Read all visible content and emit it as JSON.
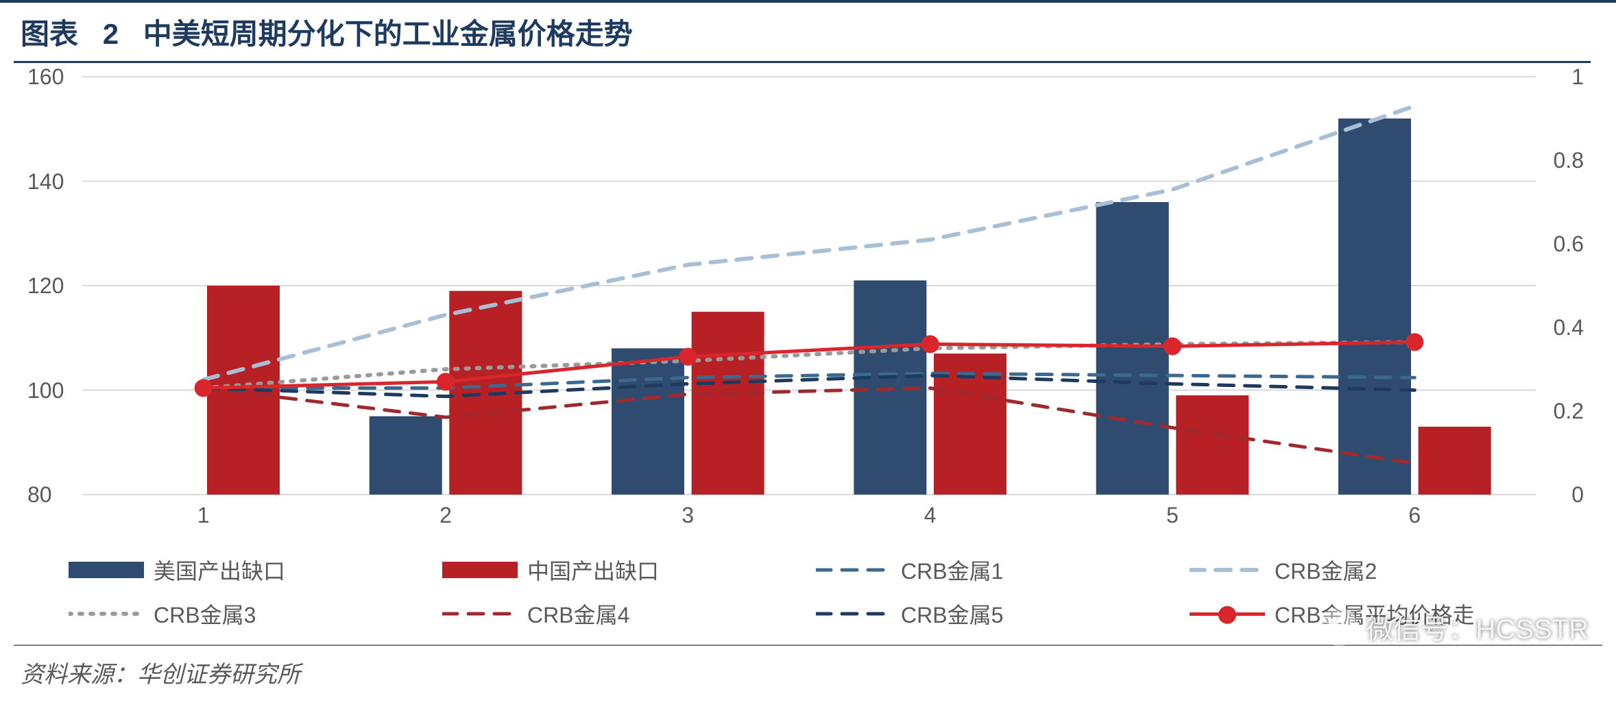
{
  "title": {
    "prefix": "图表",
    "number": "2",
    "text": "中美短周期分化下的工业金属价格走势"
  },
  "chart": {
    "type": "bar+line-dual-axis",
    "categories": [
      "1",
      "2",
      "3",
      "4",
      "5",
      "6"
    ],
    "left_axis": {
      "min": 80,
      "max": 160,
      "ticks": [
        80,
        100,
        120,
        140,
        160
      ]
    },
    "right_axis": {
      "min": 0,
      "max": 1,
      "ticks": [
        0,
        0.2,
        0.4,
        0.6,
        0.8,
        1
      ]
    },
    "grid_color": "#d9d9d9",
    "tick_color": "#595959",
    "tick_fontsize": 32,
    "bar_group_gap_ratio": 0.32,
    "bar_width_ratio": 0.3,
    "bars": [
      {
        "name": "美国产出缺口",
        "color": "#2f4b70",
        "axis": "left",
        "values": [
          80,
          95,
          108,
          121,
          136,
          152
        ]
      },
      {
        "name": "中国产出缺口",
        "color": "#b72025",
        "axis": "left",
        "values": [
          120,
          119,
          115,
          107,
          99,
          93
        ]
      }
    ],
    "lines": [
      {
        "name": "CRB金属1",
        "color": "#3c6a8e",
        "axis": "right",
        "style": "dash",
        "width": 5,
        "values": [
          0.255,
          0.255,
          0.28,
          0.29,
          0.285,
          0.28
        ]
      },
      {
        "name": "CRB金属2",
        "color": "#a8bfd6",
        "axis": "right",
        "style": "dash",
        "width": 6,
        "values": [
          0.275,
          0.43,
          0.55,
          0.61,
          0.73,
          0.93
        ]
      },
      {
        "name": "CRB金属3",
        "color": "#9a9a9a",
        "axis": "right",
        "style": "dot",
        "width": 6,
        "values": [
          0.255,
          0.3,
          0.32,
          0.35,
          0.36,
          0.365
        ]
      },
      {
        "name": "CRB金属4",
        "color": "#9e2a2f",
        "axis": "right",
        "style": "dash",
        "width": 5,
        "values": [
          0.255,
          0.185,
          0.24,
          0.255,
          0.16,
          0.075
        ]
      },
      {
        "name": "CRB金属5",
        "color": "#1f3a5f",
        "axis": "right",
        "style": "dash",
        "width": 5,
        "values": [
          0.255,
          0.235,
          0.265,
          0.285,
          0.265,
          0.25
        ]
      },
      {
        "name": "CRB金属平均价格走",
        "color": "#d8262c",
        "axis": "right",
        "style": "solid-marker",
        "width": 5,
        "marker_r": 12,
        "values": [
          0.255,
          0.27,
          0.33,
          0.36,
          0.355,
          0.365
        ]
      }
    ]
  },
  "legend_order": [
    "美国产出缺口",
    "中国产出缺口",
    "CRB金属1",
    "CRB金属2",
    "CRB金属3",
    "CRB金属4",
    "CRB金属5",
    "CRB金属平均价格走"
  ],
  "source": "资料来源：华创证券研究所",
  "watermark": "微信号：HCSSTR"
}
